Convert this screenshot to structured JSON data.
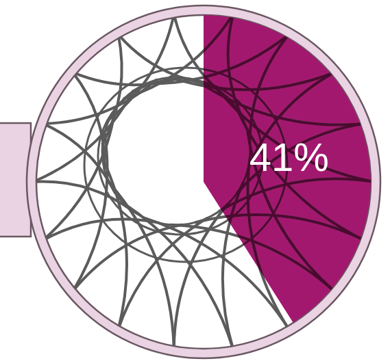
{
  "chart_data": {
    "type": "pie",
    "values": [
      41
    ],
    "value_labels": [
      "41%"
    ],
    "data_labels": true,
    "ylim": [
      0,
      100
    ],
    "color": "#a3186f"
  }
}
